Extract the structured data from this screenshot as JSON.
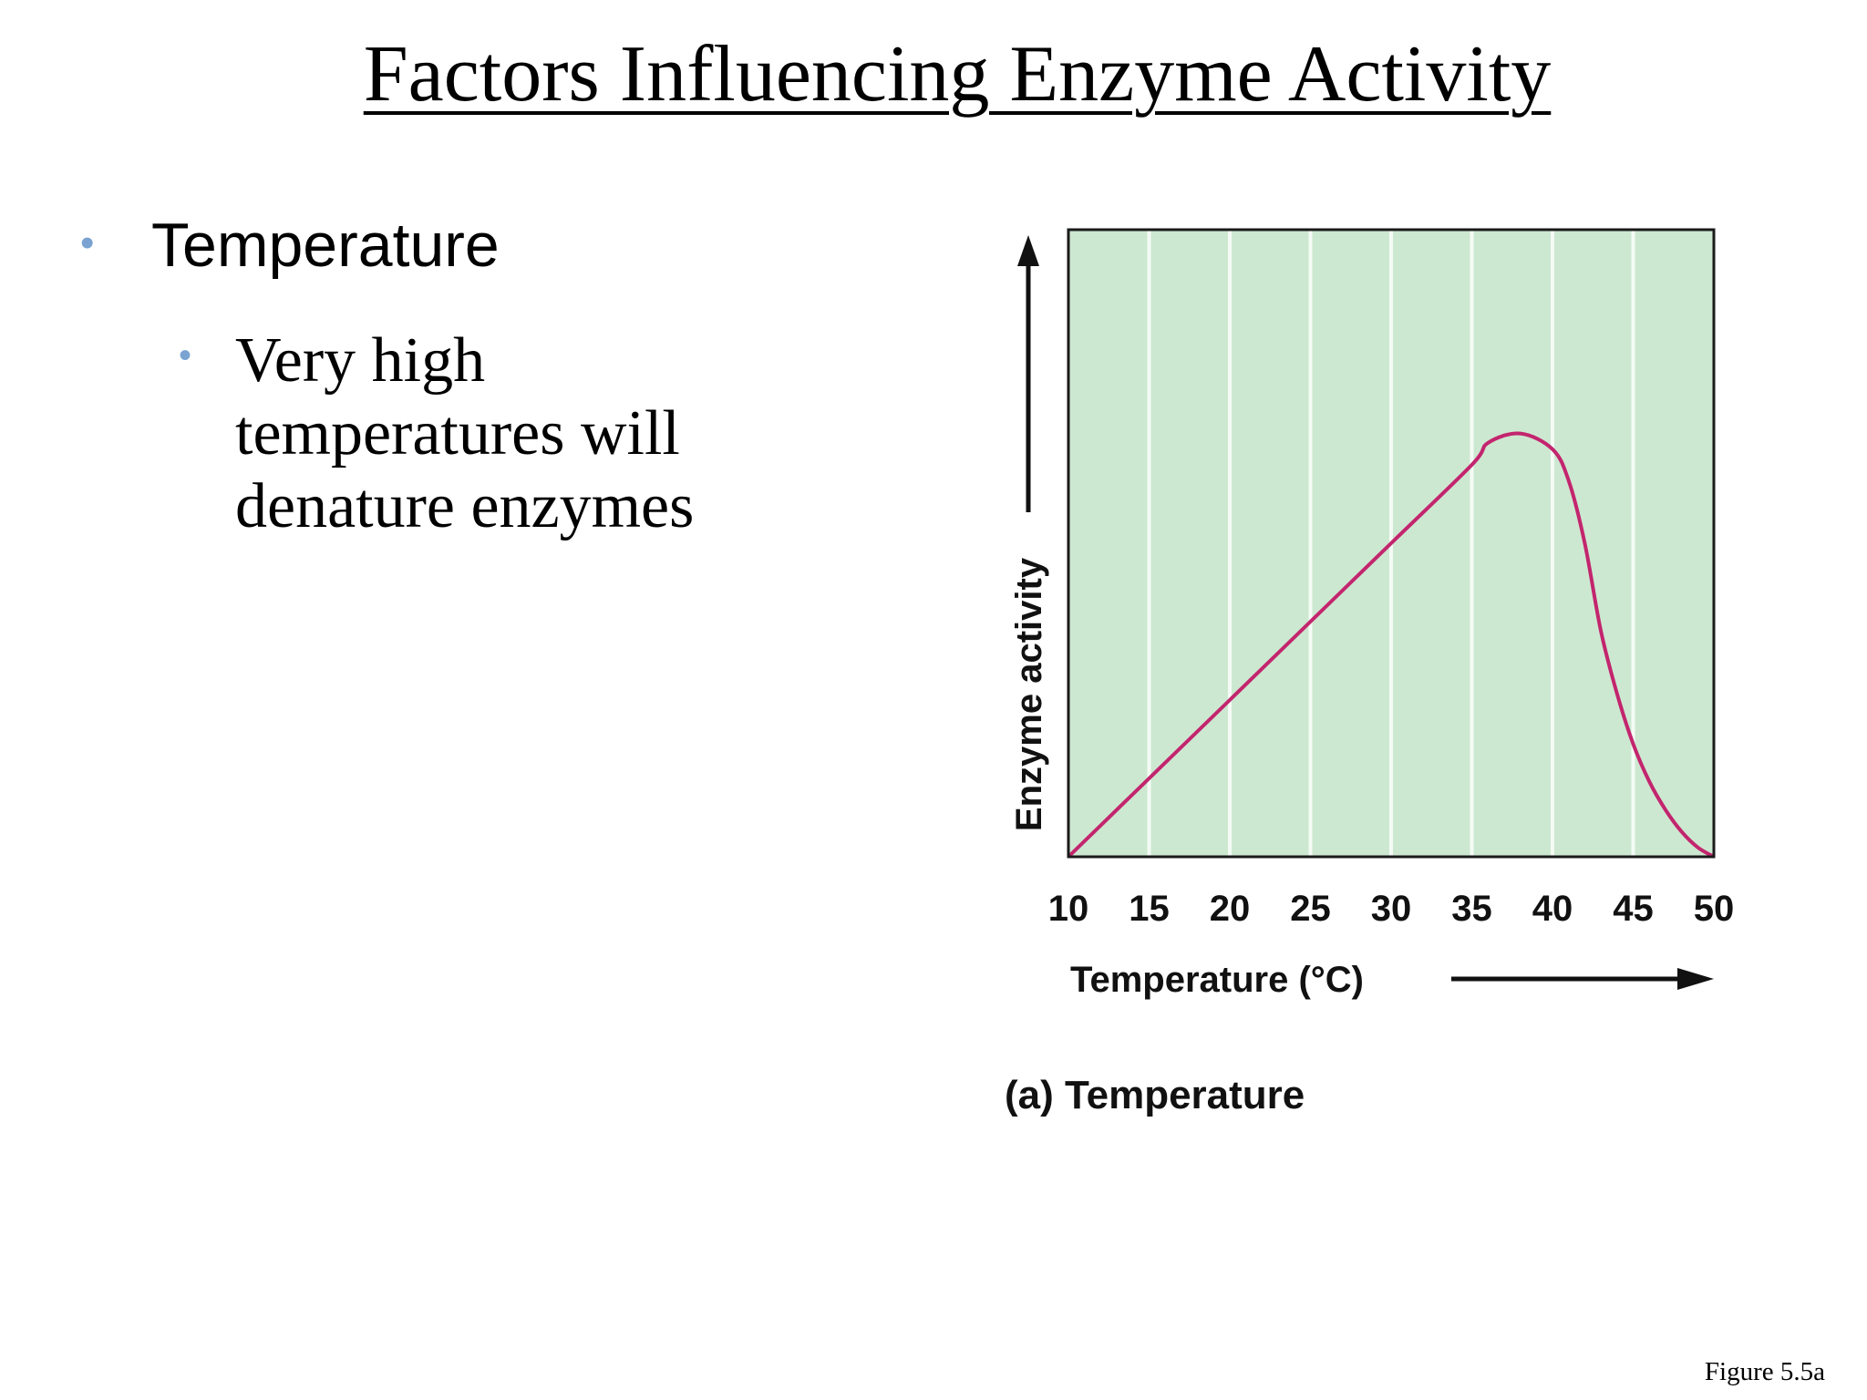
{
  "slide": {
    "title": "Factors Influencing Enzyme Activity",
    "bullet1": "Temperature",
    "bullet2": "Very high temperatures will denature enzymes",
    "figure_label": "Figure 5.5a"
  },
  "colors": {
    "plot_background": "#cde8d1",
    "curve": "#c3256e",
    "bullet": "#7aa3d2"
  },
  "chart_data": {
    "type": "line",
    "caption": "(a) Temperature",
    "xlabel": "Temperature (°C)",
    "ylabel": "Enzyme activity",
    "x_ticks": [
      10,
      15,
      20,
      25,
      30,
      35,
      40,
      45,
      50
    ],
    "xlim": [
      10,
      50
    ],
    "ylim": [
      0,
      1
    ],
    "y_ticks_shown": false,
    "grid": "vertical",
    "series": [
      {
        "points": [
          [
            10,
            0.0
          ],
          [
            15,
            0.125
          ],
          [
            20,
            0.25
          ],
          [
            25,
            0.375
          ],
          [
            30,
            0.5
          ],
          [
            35,
            0.625
          ],
          [
            36,
            0.66
          ],
          [
            38,
            0.675
          ],
          [
            40,
            0.65
          ],
          [
            41,
            0.6
          ],
          [
            42,
            0.5
          ],
          [
            43,
            0.36
          ],
          [
            44,
            0.26
          ],
          [
            45,
            0.18
          ],
          [
            46,
            0.12
          ],
          [
            47,
            0.075
          ],
          [
            48,
            0.04
          ],
          [
            49,
            0.015
          ],
          [
            50,
            0.0
          ]
        ]
      }
    ]
  }
}
